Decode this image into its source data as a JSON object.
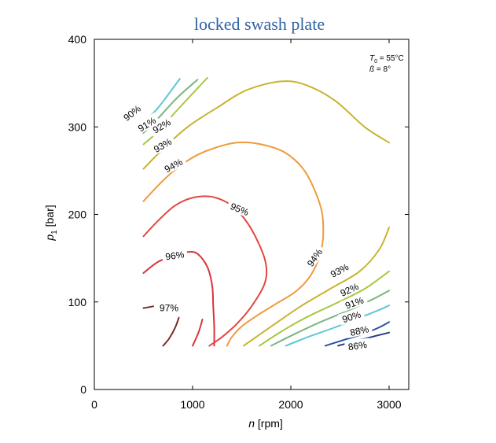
{
  "chart_data": {
    "type": "line",
    "title": "locked swash plate",
    "xlabel": "n",
    "xlabel_unit": "[rpm]",
    "ylabel": "p",
    "ylabel_sub": "1",
    "ylabel_unit": "[bar]",
    "xlim": [
      0,
      3200
    ],
    "ylim": [
      0,
      400
    ],
    "xticks": [
      0,
      1000,
      2000,
      3000
    ],
    "xtick_labels": [
      "0",
      "1000",
      "2000",
      "3000"
    ],
    "yticks": [
      0,
      100,
      200,
      300,
      400
    ],
    "ytick_labels": [
      "0",
      "100",
      "200",
      "300",
      "400"
    ],
    "annotation": {
      "line1_sym": "T",
      "line1_sub": "0",
      "line1_val": " = 55°C",
      "line2_sym": "ß",
      "line2_val": "  = 8°"
    },
    "series": [
      {
        "name": "97%",
        "label": "97%",
        "color": "#7a2a2a",
        "x": [
          500,
          600
        ],
        "y": [
          93,
          95
        ],
        "x2": [
          700,
          760,
          820,
          860
        ],
        "y2": [
          50,
          58,
          70,
          82
        ],
        "label_at": [
          760,
          92
        ]
      },
      {
        "name": "96%",
        "label": "96%",
        "color": "#d9343a",
        "x": [
          500,
          620,
          760,
          900,
          1000,
          1030,
          1060,
          1080,
          1090,
          1090
        ],
        "y": [
          133,
          145,
          153,
          157,
          154,
          140,
          120,
          100,
          80,
          50
        ],
        "x_left": [
          1000,
          1040
        ],
        "y_left": [
          50,
          70
        ],
        "x_main": [
          500,
          650,
          800,
          950,
          1050,
          1150,
          1200,
          1210,
          1220,
          1220
        ],
        "y_main": [
          133,
          146,
          152,
          157,
          155,
          140,
          118,
          95,
          72,
          50
        ],
        "x_low": [
          1000,
          1060,
          1100
        ],
        "y_low": [
          50,
          65,
          80
        ],
        "label_at": [
          820,
          152
        ]
      },
      {
        "name": "95%",
        "label": "95%",
        "color": "#e24640",
        "x": [
          500,
          650,
          820,
          1000,
          1200,
          1400,
          1560,
          1700,
          1750,
          1730,
          1600,
          1450,
          1300,
          1170
        ],
        "y": [
          175,
          193,
          210,
          219,
          220,
          210,
          190,
          160,
          140,
          120,
          95,
          75,
          60,
          50
        ],
        "label_at": [
          1475,
          205
        ]
      },
      {
        "name": "94%",
        "label": "94%",
        "color": "#f09a3c",
        "x": [
          500,
          640,
          800,
          1000,
          1200,
          1450,
          1700,
          1950,
          2150,
          2300,
          2330,
          2300,
          2200,
          2050,
          1850,
          1650,
          1500,
          1400,
          1350
        ],
        "y": [
          215,
          232,
          249,
          265,
          275,
          282,
          280,
          270,
          248,
          210,
          180,
          155,
          130,
          112,
          98,
          84,
          72,
          60,
          50
        ],
        "label_at": [
          810,
          255
        ]
      },
      {
        "name": "93%",
        "label": "93%",
        "color": "#c9b32c",
        "x": [
          500,
          700,
          950,
          1250,
          1550,
          1900,
          2150,
          2450,
          2750,
          3000
        ],
        "y": [
          252,
          275,
          300,
          322,
          342,
          352,
          348,
          330,
          300,
          282
        ],
        "x2": [
          1520,
          1800,
          2100,
          2400,
          2700,
          2900,
          3000
        ],
        "y2": [
          50,
          72,
          95,
          115,
          135,
          160,
          185
        ],
        "label_at": [
          700,
          278
        ]
      },
      {
        "name": "92%",
        "label": "92%",
        "color": "#a8c83f",
        "x": [
          500,
          650,
          850,
          1150
        ],
        "y": [
          280,
          295,
          320,
          356
        ],
        "x2": [
          1680,
          1900,
          2150,
          2450,
          2750,
          3000
        ],
        "y2": [
          50,
          66,
          82,
          98,
          115,
          135
        ],
        "label_at": [
          690,
          300
        ]
      },
      {
        "name": "91%",
        "label": "91%",
        "color": "#7ab782",
        "x": [
          500,
          650,
          850,
          1050
        ],
        "y": [
          293,
          310,
          334,
          354
        ],
        "x2": [
          1800,
          2050,
          2300,
          2600,
          2850,
          3000
        ],
        "y2": [
          50,
          64,
          77,
          91,
          104,
          113
        ],
        "label_at": [
          540,
          302
        ]
      },
      {
        "name": "90%",
        "label": "90%",
        "color": "#5ec8d4",
        "x": [
          500,
          650,
          870
        ],
        "y": [
          305,
          322,
          355
        ],
        "x2": [
          1950,
          2200,
          2450,
          2700,
          2900,
          3000
        ],
        "y2": [
          50,
          61,
          71,
          82,
          91,
          96
        ],
        "label_at": [
          390,
          315
        ]
      },
      {
        "name": "88%",
        "label": "88%",
        "color": "#2a52a4",
        "x2": [
          2350,
          2550,
          2750,
          2900,
          3000
        ],
        "y2": [
          50,
          57,
          64,
          71,
          77
        ],
        "label_at": [
          2700,
          66
        ]
      },
      {
        "name": "86%",
        "label": "86%",
        "color": "#243d83",
        "x2": [
          2480,
          2650,
          2820,
          3000
        ],
        "y2": [
          50,
          55,
          60,
          65
        ],
        "label_at": [
          2680,
          49
        ]
      }
    ]
  }
}
